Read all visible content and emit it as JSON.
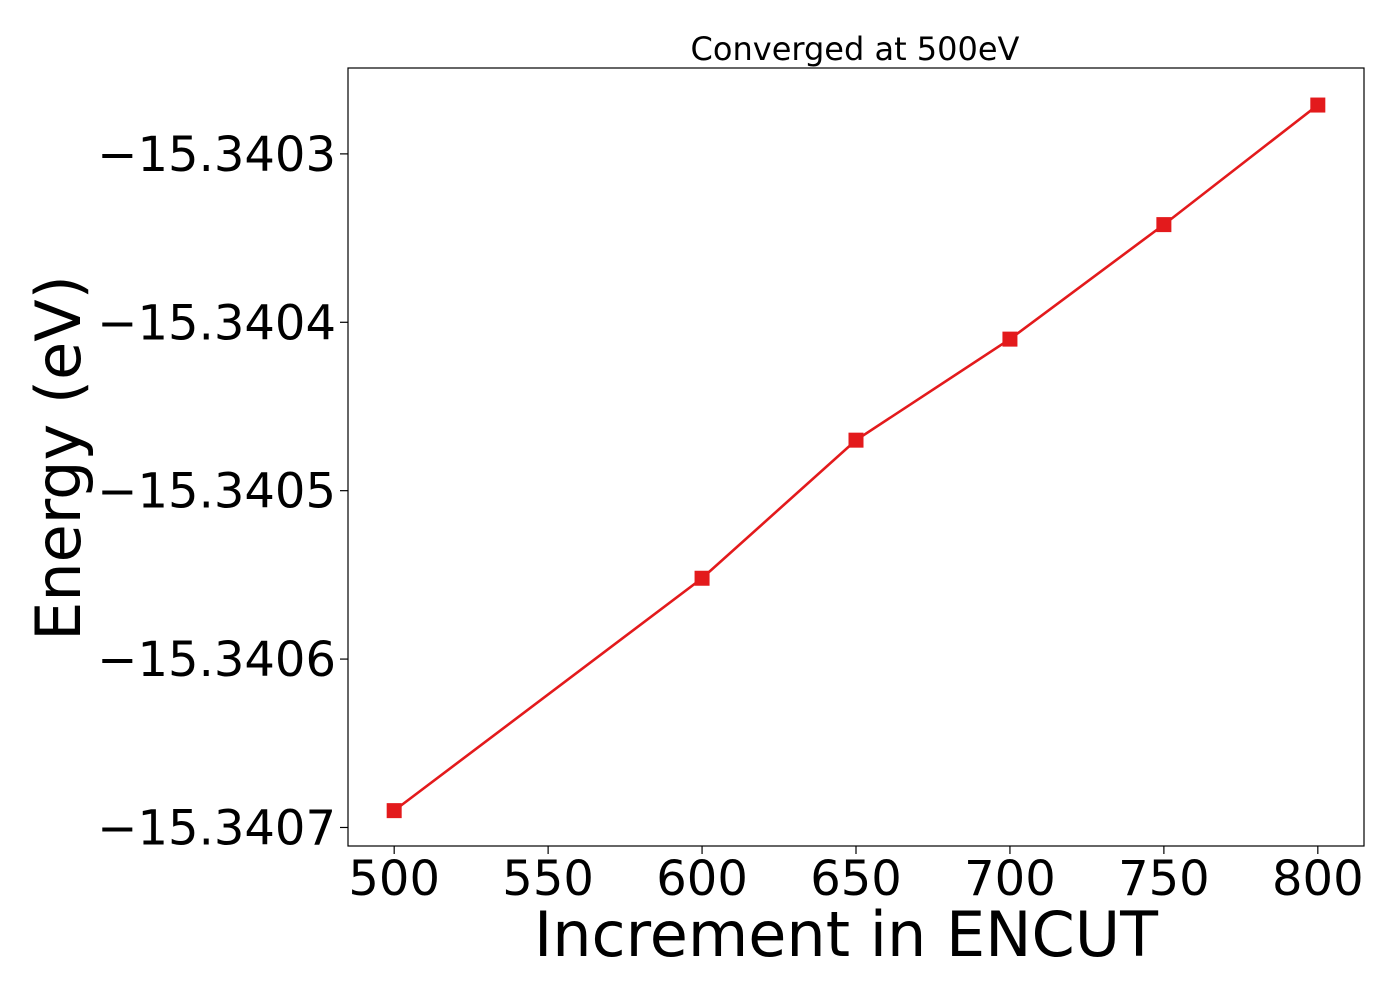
{
  "chart_data": {
    "type": "line",
    "title": "Converged at 500eV",
    "xlabel": "Increment in ENCUT",
    "ylabel": "Energy (eV)",
    "x": [
      500,
      600,
      650,
      700,
      750,
      800
    ],
    "series": [
      {
        "values": [
          -15.34069,
          -15.340552,
          -15.34047,
          -15.34041,
          -15.340342,
          -15.340271
        ],
        "color": "#e31a1c",
        "marker": "square"
      }
    ],
    "xlim": [
      485,
      815
    ],
    "ylim": [
      -15.340711,
      -15.340249
    ],
    "xticks": [
      500,
      550,
      600,
      650,
      700,
      750,
      800
    ],
    "xtick_labels": [
      "500",
      "550",
      "600",
      "650",
      "700",
      "750",
      "800"
    ],
    "yticks": [
      -15.3403,
      -15.3404,
      -15.3405,
      -15.3406,
      -15.3407
    ],
    "ytick_labels": [
      "−15.3403",
      "−15.3404",
      "−15.3405",
      "−15.3406",
      "−15.3407"
    ],
    "grid": false,
    "legend": "none"
  }
}
